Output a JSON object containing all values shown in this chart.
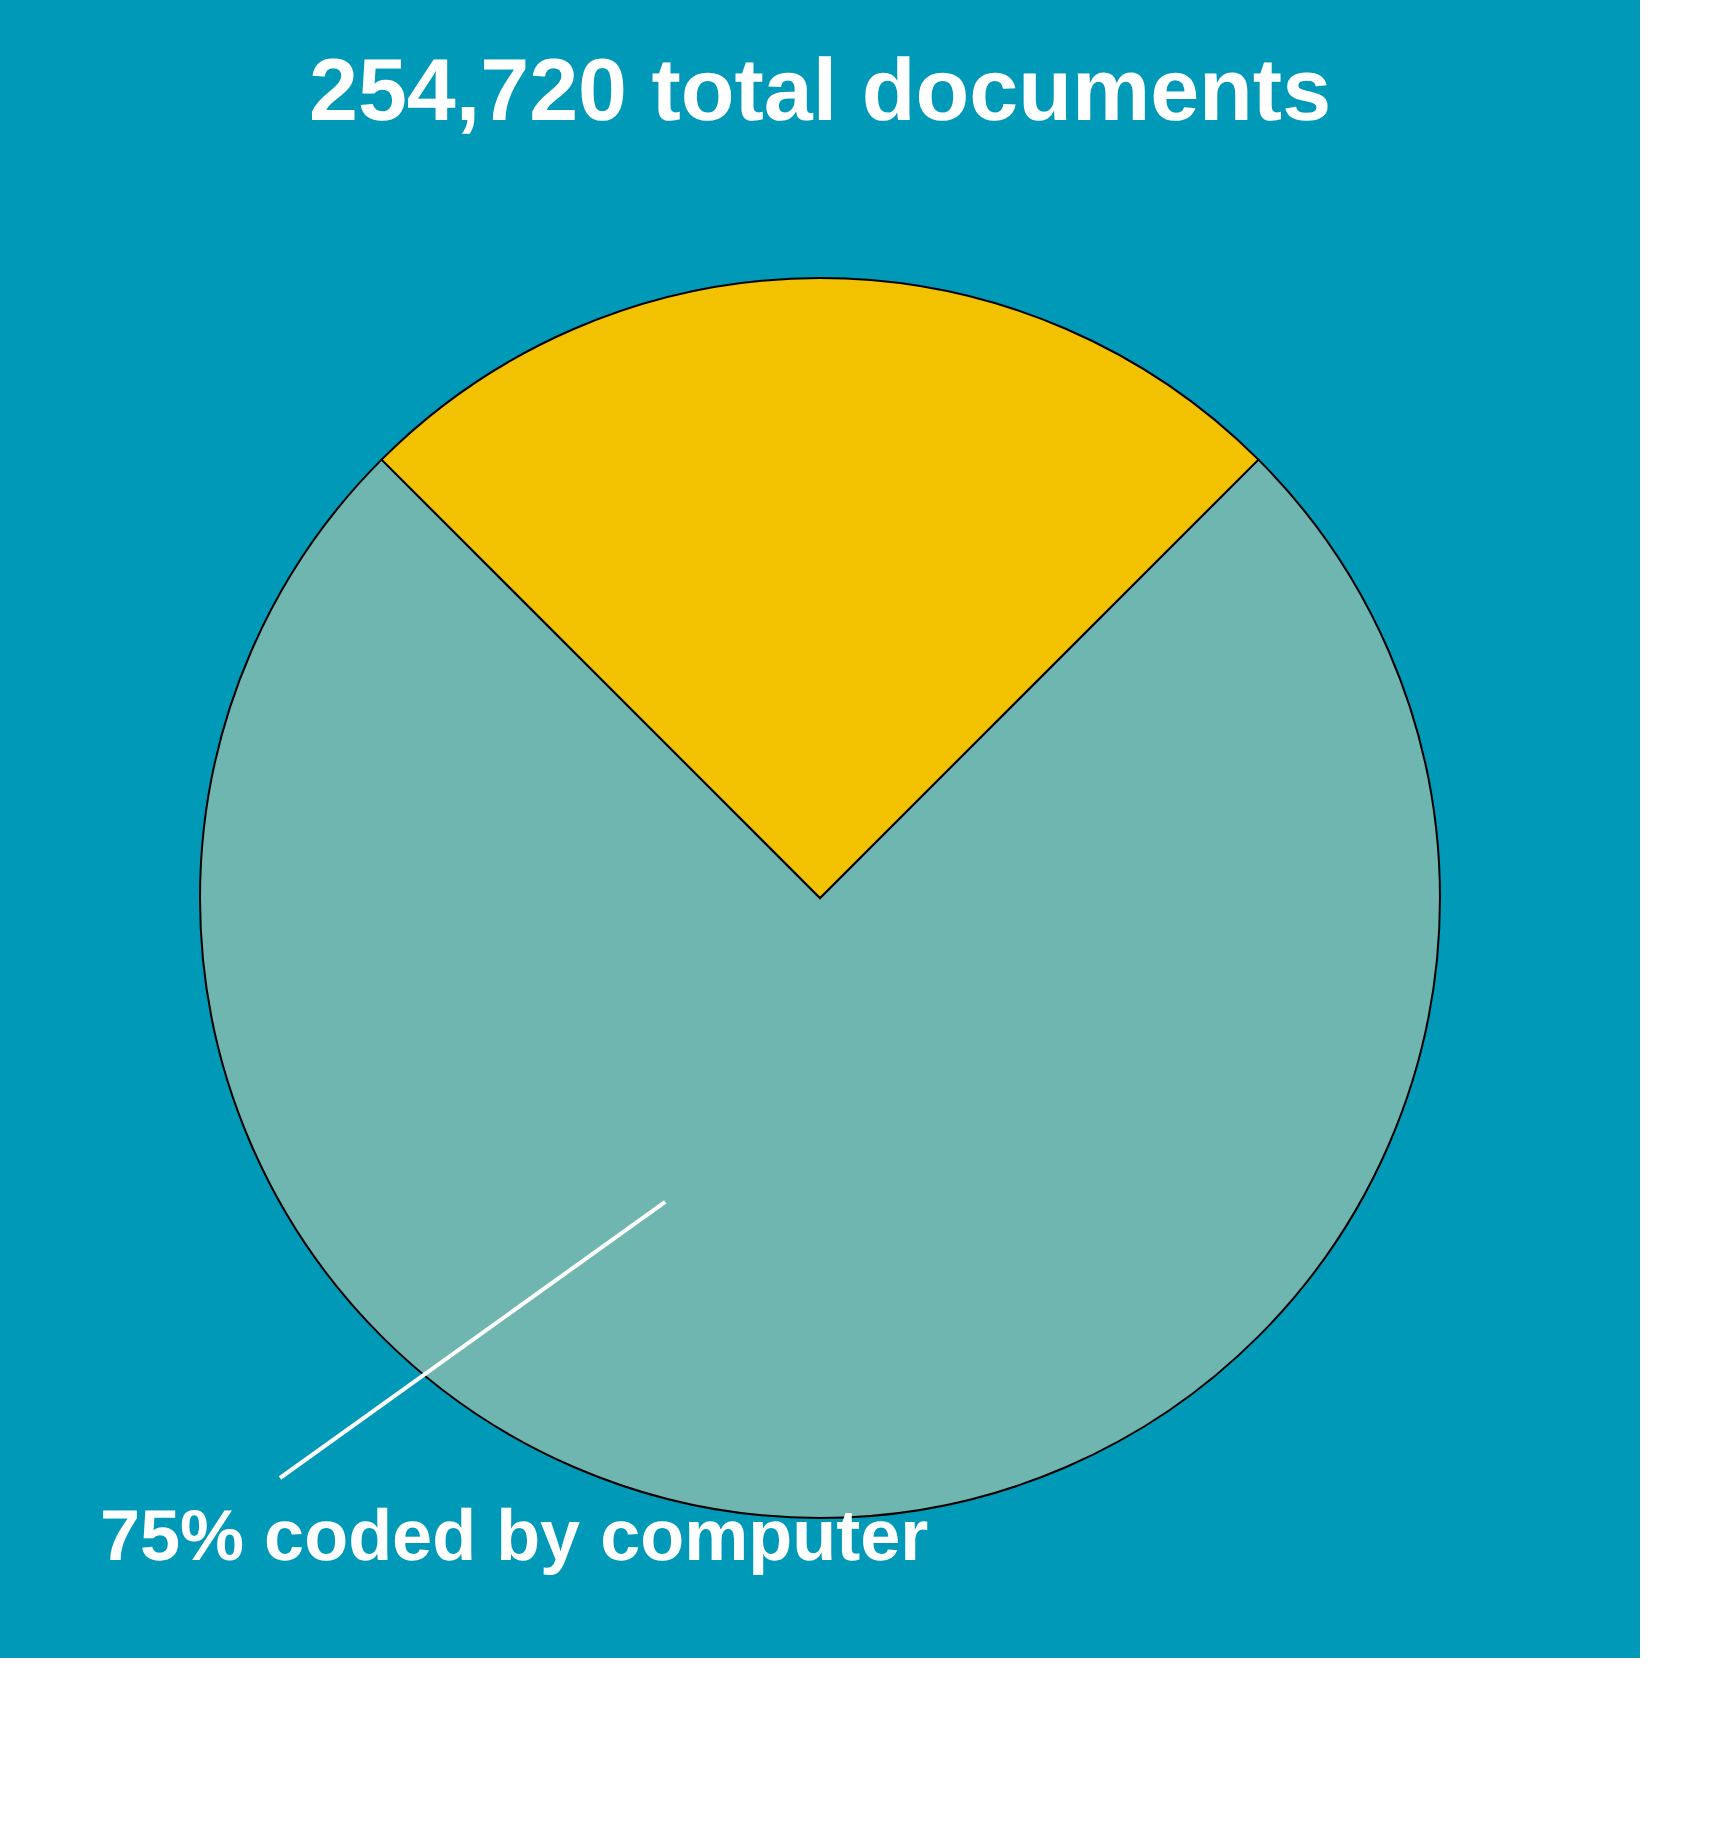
{
  "chart_data": {
    "type": "pie",
    "title": "254,720 total documents",
    "categories": [
      "75% coded by computer",
      null
    ],
    "values": [
      75,
      25
    ],
    "colors": [
      "#6fb5b0",
      "#f2c200"
    ]
  }
}
